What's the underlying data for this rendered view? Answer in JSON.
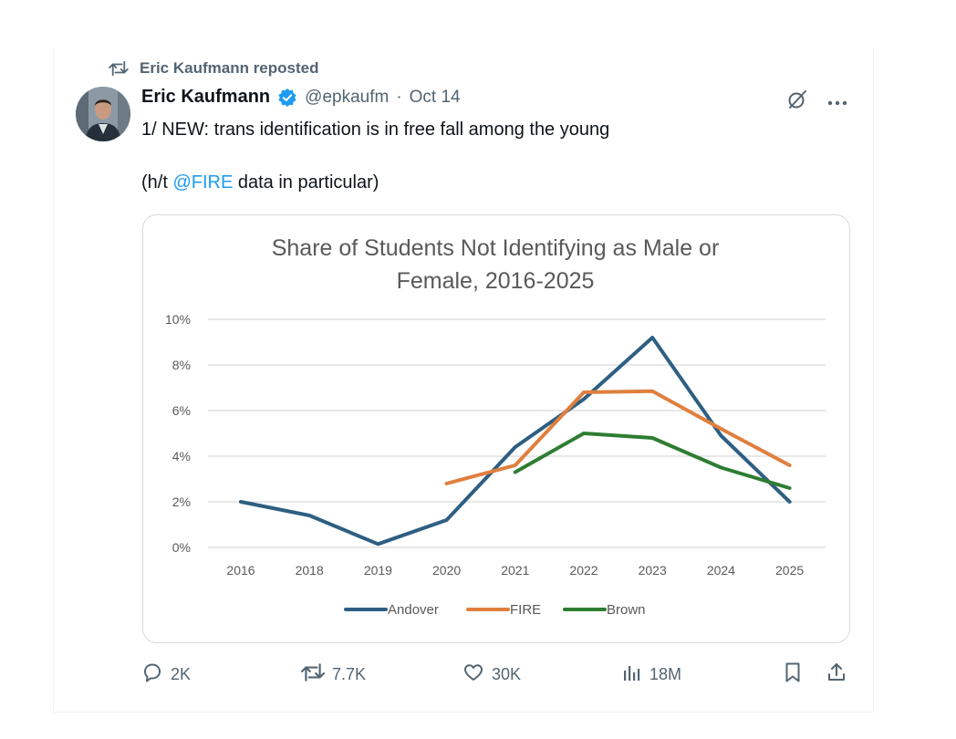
{
  "repost": {
    "label": "Eric Kaufmann reposted"
  },
  "author": {
    "name": "Eric Kaufmann",
    "handle": "@epkaufm",
    "date_sep": "·",
    "date": "Oct 14"
  },
  "tweet": {
    "line1": "1/ NEW: trans identification is in free fall among the young",
    "line2_prefix": "(h/t ",
    "mention": "@FIRE",
    "line2_suffix": " data in particular)"
  },
  "chart_data": {
    "type": "line",
    "title_lines": [
      "Share of Students Not Identifying as Male or",
      "Female, 2016-2025"
    ],
    "categories": [
      "2016",
      "2018",
      "2019",
      "2020",
      "2021",
      "2022",
      "2023",
      "2024",
      "2025"
    ],
    "ylim": [
      0,
      10
    ],
    "yticks": [
      0,
      2,
      4,
      6,
      8,
      10
    ],
    "ytick_labels": [
      "0%",
      "2%",
      "4%",
      "6%",
      "8%",
      "10%"
    ],
    "legend_position": "bottom",
    "grid": true,
    "series": [
      {
        "name": "Andover",
        "color": "#2e5f82",
        "values": [
          2.0,
          1.4,
          0.15,
          1.2,
          4.4,
          6.5,
          9.2,
          4.9,
          2.0
        ]
      },
      {
        "name": "FIRE",
        "color": "#e07f3e",
        "values": [
          null,
          null,
          null,
          2.8,
          3.6,
          6.8,
          6.85,
          5.2,
          3.6
        ]
      },
      {
        "name": "Brown",
        "color": "#2e7d32",
        "values": [
          null,
          null,
          null,
          null,
          3.3,
          5.0,
          4.8,
          3.5,
          2.6
        ]
      }
    ]
  },
  "actions": {
    "replies": "2K",
    "reposts": "7.7K",
    "likes": "30K",
    "views": "18M"
  },
  "colors": {
    "accent": "#1d9bf0",
    "muted": "#536471"
  }
}
